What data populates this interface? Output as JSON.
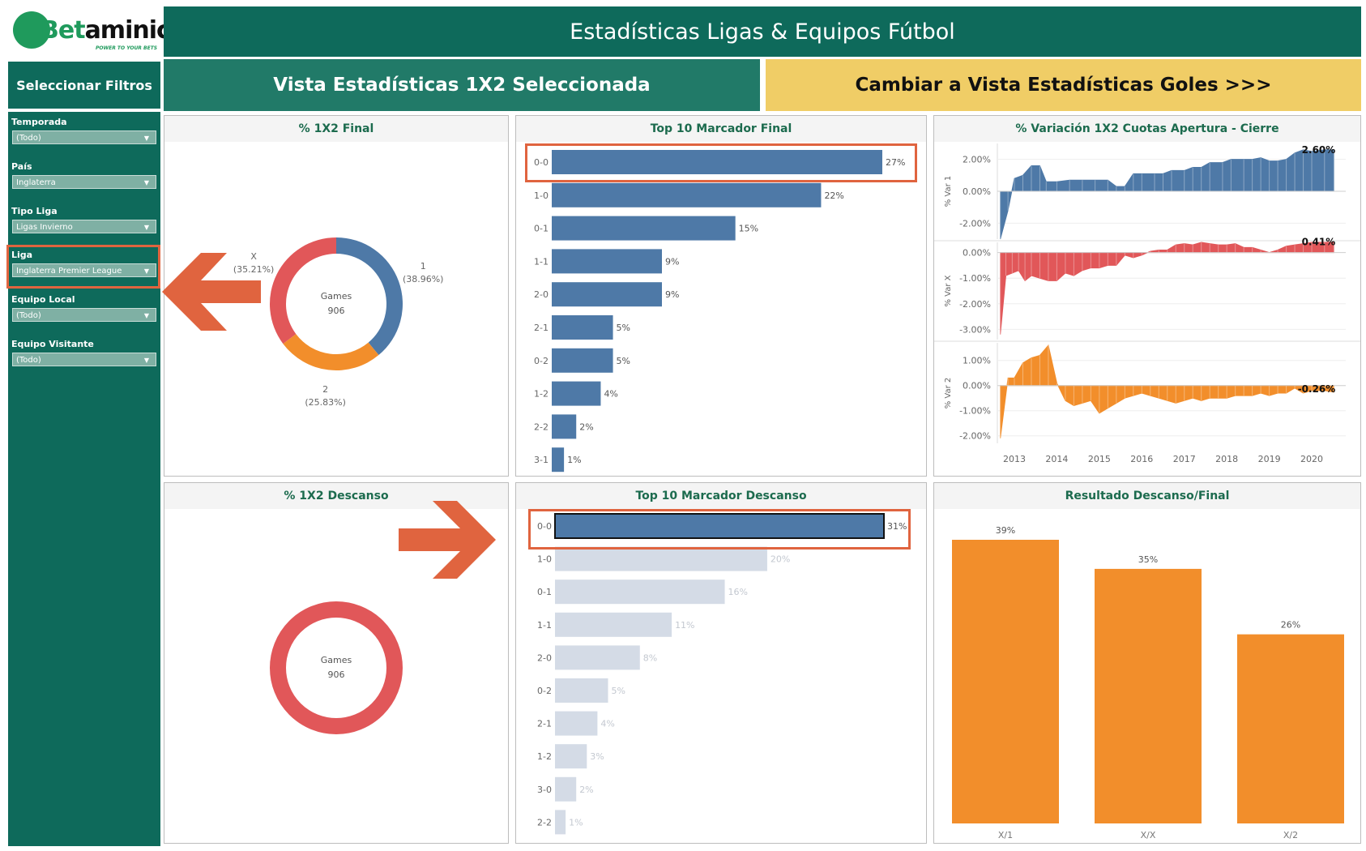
{
  "logo": {
    "text_a": "Bet",
    "text_b": "aminic",
    "tagline": "POWER TO YOUR BETS"
  },
  "header": {
    "title": "Estadísticas Ligas & Equipos Fútbol",
    "filters_title": "Seleccionar Filtros",
    "view_selected": "Vista Estadísticas 1X2 Seleccionada",
    "view_switch": "Cambiar a Vista Estadísticas Goles >>>"
  },
  "filters": [
    {
      "label": "Temporada",
      "value": "(Todo)"
    },
    {
      "label": "País",
      "value": "Inglaterra"
    },
    {
      "label": "Tipo Liga",
      "value": "Ligas Invierno"
    },
    {
      "label": "Liga",
      "value": "Inglaterra Premier League"
    },
    {
      "label": "Equipo Local",
      "value": "(Todo)"
    },
    {
      "label": "Equipo Visitante",
      "value": "(Todo)"
    }
  ],
  "colors": {
    "blue": "#4e79a7",
    "red": "#e15759",
    "orange": "#f28e2b",
    "faded": "#d4dbe6",
    "green": "#0e6a5b",
    "highlight": "#e0643f"
  },
  "chart_data": [
    {
      "id": "donut_final",
      "type": "pie",
      "title": "% 1X2 Final",
      "center_label": "Games",
      "center_value": "906",
      "slices": [
        {
          "label": "1",
          "value": 38.96,
          "display": "(38.96%)",
          "color": "#4e79a7"
        },
        {
          "label": "2",
          "value": 25.83,
          "display": "(25.83%)",
          "color": "#f28e2b"
        },
        {
          "label": "X",
          "value": 35.21,
          "display": "(35.21%)",
          "color": "#e15759"
        }
      ]
    },
    {
      "id": "donut_half",
      "type": "pie",
      "title": "% 1X2 Descanso",
      "center_label": "Games",
      "center_value": "906",
      "slices": [
        {
          "label": "",
          "value": 100,
          "color": "#e15759"
        }
      ]
    },
    {
      "id": "bar_final",
      "type": "bar",
      "title": "Top 10 Marcador Final",
      "categories": [
        "0-0",
        "1-0",
        "0-1",
        "1-1",
        "2-0",
        "2-1",
        "0-2",
        "1-2",
        "2-2",
        "3-1"
      ],
      "values": [
        27,
        22,
        15,
        9,
        9,
        5,
        5,
        4,
        2,
        1
      ],
      "labels": [
        "27%",
        "22%",
        "15%",
        "9%",
        "9%",
        "5%",
        "5%",
        "4%",
        "2%",
        "1%"
      ],
      "ylim": [
        0,
        27
      ]
    },
    {
      "id": "bar_half",
      "type": "bar",
      "title": "Top 10 Marcador Descanso",
      "categories": [
        "0-0",
        "1-0",
        "0-1",
        "1-1",
        "2-0",
        "0-2",
        "2-1",
        "1-2",
        "3-0",
        "2-2"
      ],
      "values": [
        31,
        20,
        16,
        11,
        8,
        5,
        4,
        3,
        2,
        1
      ],
      "labels": [
        "31%",
        "20%",
        "16%",
        "11%",
        "8%",
        "5%",
        "4%",
        "3%",
        "2%",
        "1%"
      ],
      "ylim": [
        0,
        31
      ],
      "selected": "0-0"
    },
    {
      "id": "area_variation",
      "type": "area",
      "title": "% Variación 1X2 Cuotas Apertura - Cierre",
      "x_ticks": [
        "2013",
        "2014",
        "2015",
        "2016",
        "2017",
        "2018",
        "2019",
        "2020"
      ],
      "x_range": [
        2012.6,
        2020.8
      ],
      "series": [
        {
          "name": "% Var 1",
          "color": "#4e79a7",
          "ticks": [
            "2.00%",
            "0.00%",
            "-2.00%"
          ],
          "ylim": [
            -3.0,
            3.0
          ],
          "end_label": "2.60%",
          "points": [
            [
              2012.67,
              -3.0
            ],
            [
              2012.85,
              -1.2
            ],
            [
              2013.0,
              0.8
            ],
            [
              2013.2,
              1.0
            ],
            [
              2013.4,
              1.6
            ],
            [
              2013.6,
              1.6
            ],
            [
              2013.75,
              0.6
            ],
            [
              2014.0,
              0.6
            ],
            [
              2014.3,
              0.7
            ],
            [
              2014.6,
              0.7
            ],
            [
              2014.9,
              0.7
            ],
            [
              2015.2,
              0.7
            ],
            [
              2015.4,
              0.3
            ],
            [
              2015.6,
              0.3
            ],
            [
              2015.8,
              1.1
            ],
            [
              2016.0,
              1.1
            ],
            [
              2016.3,
              1.1
            ],
            [
              2016.5,
              1.1
            ],
            [
              2016.7,
              1.3
            ],
            [
              2017.0,
              1.3
            ],
            [
              2017.2,
              1.5
            ],
            [
              2017.4,
              1.5
            ],
            [
              2017.6,
              1.8
            ],
            [
              2017.9,
              1.8
            ],
            [
              2018.1,
              2.0
            ],
            [
              2018.4,
              2.0
            ],
            [
              2018.6,
              2.0
            ],
            [
              2018.8,
              2.1
            ],
            [
              2019.0,
              1.9
            ],
            [
              2019.2,
              1.9
            ],
            [
              2019.4,
              2.0
            ],
            [
              2019.6,
              2.4
            ],
            [
              2019.8,
              2.6
            ],
            [
              2020.0,
              2.5
            ],
            [
              2020.3,
              2.6
            ],
            [
              2020.52,
              2.6
            ]
          ]
        },
        {
          "name": "% Var X",
          "color": "#e15759",
          "ticks": [
            "0.00%",
            "-1.00%",
            "-2.00%",
            "-3.00%"
          ],
          "ylim": [
            -3.4,
            0.4
          ],
          "end_label": "0.41%",
          "points": [
            [
              2012.67,
              -3.2
            ],
            [
              2012.8,
              -0.9
            ],
            [
              2012.95,
              -0.8
            ],
            [
              2013.1,
              -0.7
            ],
            [
              2013.25,
              -1.1
            ],
            [
              2013.4,
              -0.9
            ],
            [
              2013.6,
              -1.0
            ],
            [
              2013.8,
              -1.1
            ],
            [
              2014.0,
              -1.1
            ],
            [
              2014.2,
              -0.8
            ],
            [
              2014.4,
              -0.9
            ],
            [
              2014.6,
              -0.7
            ],
            [
              2014.8,
              -0.6
            ],
            [
              2015.0,
              -0.6
            ],
            [
              2015.2,
              -0.5
            ],
            [
              2015.4,
              -0.5
            ],
            [
              2015.6,
              -0.1
            ],
            [
              2015.8,
              -0.2
            ],
            [
              2016.0,
              -0.1
            ],
            [
              2016.2,
              0.05
            ],
            [
              2016.4,
              0.1
            ],
            [
              2016.6,
              0.1
            ],
            [
              2016.8,
              0.3
            ],
            [
              2017.0,
              0.35
            ],
            [
              2017.2,
              0.3
            ],
            [
              2017.4,
              0.4
            ],
            [
              2017.6,
              0.35
            ],
            [
              2017.8,
              0.3
            ],
            [
              2018.0,
              0.3
            ],
            [
              2018.2,
              0.35
            ],
            [
              2018.4,
              0.2
            ],
            [
              2018.6,
              0.2
            ],
            [
              2018.8,
              0.1
            ],
            [
              2019.0,
              0.0
            ],
            [
              2019.2,
              0.1
            ],
            [
              2019.4,
              0.25
            ],
            [
              2019.6,
              0.3
            ],
            [
              2019.8,
              0.35
            ],
            [
              2020.0,
              0.4
            ],
            [
              2020.3,
              0.4
            ],
            [
              2020.52,
              0.41
            ]
          ]
        },
        {
          "name": "% Var 2",
          "color": "#f28e2b",
          "ticks": [
            "1.00%",
            "0.00%",
            "-1.00%",
            "-2.00%"
          ],
          "ylim": [
            -2.3,
            1.7
          ],
          "end_label": "-0.26%",
          "points": [
            [
              2012.67,
              -2.1
            ],
            [
              2012.85,
              0.3
            ],
            [
              2013.0,
              0.3
            ],
            [
              2013.2,
              0.9
            ],
            [
              2013.4,
              1.1
            ],
            [
              2013.6,
              1.2
            ],
            [
              2013.8,
              1.6
            ],
            [
              2014.0,
              0.1
            ],
            [
              2014.2,
              -0.6
            ],
            [
              2014.4,
              -0.8
            ],
            [
              2014.6,
              -0.7
            ],
            [
              2014.8,
              -0.6
            ],
            [
              2015.0,
              -1.1
            ],
            [
              2015.2,
              -0.9
            ],
            [
              2015.4,
              -0.7
            ],
            [
              2015.6,
              -0.5
            ],
            [
              2015.8,
              -0.4
            ],
            [
              2016.0,
              -0.3
            ],
            [
              2016.2,
              -0.4
            ],
            [
              2016.4,
              -0.5
            ],
            [
              2016.6,
              -0.6
            ],
            [
              2016.8,
              -0.7
            ],
            [
              2017.0,
              -0.6
            ],
            [
              2017.2,
              -0.5
            ],
            [
              2017.4,
              -0.6
            ],
            [
              2017.6,
              -0.5
            ],
            [
              2017.8,
              -0.5
            ],
            [
              2018.0,
              -0.5
            ],
            [
              2018.2,
              -0.4
            ],
            [
              2018.4,
              -0.4
            ],
            [
              2018.6,
              -0.4
            ],
            [
              2018.8,
              -0.3
            ],
            [
              2019.0,
              -0.4
            ],
            [
              2019.2,
              -0.3
            ],
            [
              2019.4,
              -0.3
            ],
            [
              2019.6,
              -0.1
            ],
            [
              2019.8,
              -0.3
            ],
            [
              2020.0,
              -0.2
            ],
            [
              2020.3,
              -0.2
            ],
            [
              2020.52,
              -0.26
            ]
          ]
        }
      ]
    },
    {
      "id": "bar_ht_ft",
      "type": "bar",
      "title": "Resultado Descanso/Final",
      "categories": [
        "X/1",
        "X/X",
        "X/2"
      ],
      "values": [
        39,
        35,
        26
      ],
      "labels": [
        "39%",
        "35%",
        "26%"
      ],
      "ylim": [
        0,
        39
      ],
      "color": "#f28e2b"
    }
  ]
}
